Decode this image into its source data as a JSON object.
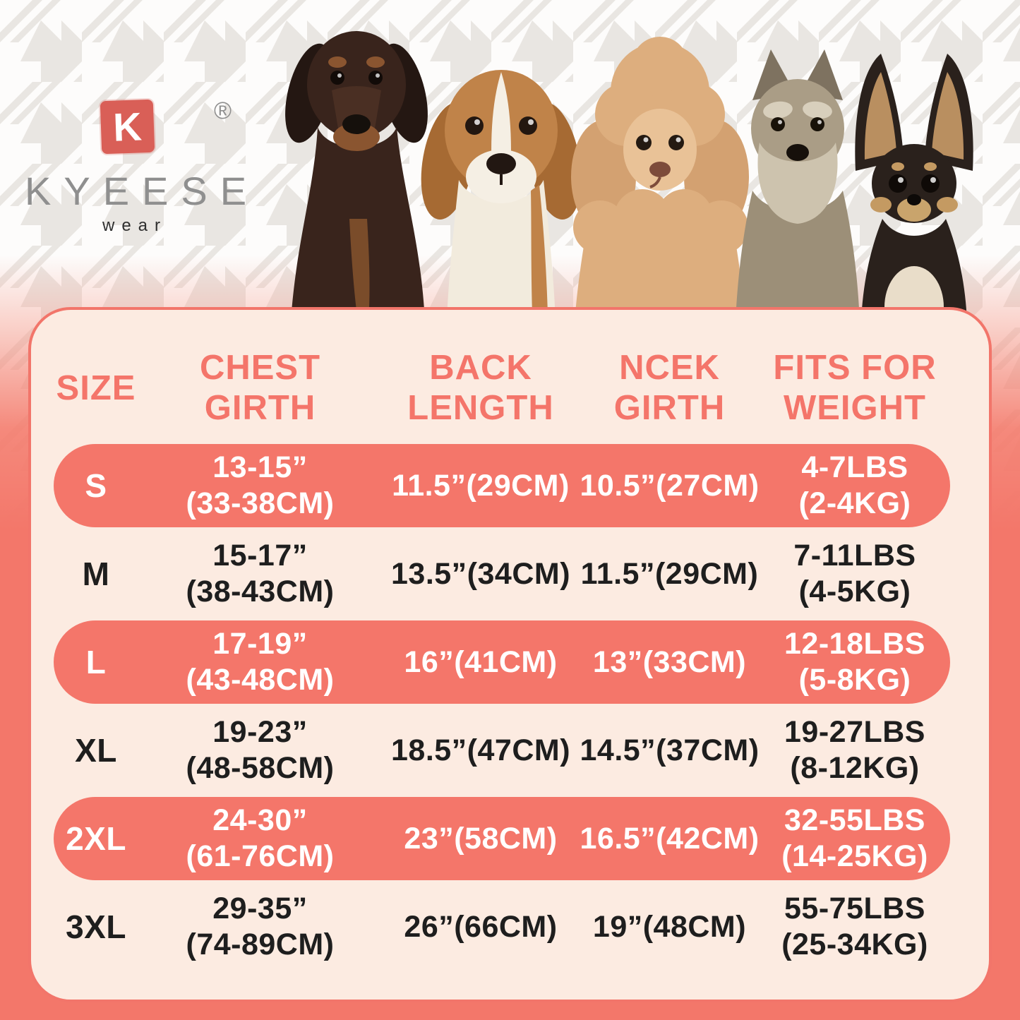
{
  "brand": {
    "mark": "K",
    "registered": "®",
    "name": "KYEESE",
    "tagline": "wear"
  },
  "dogs": [
    "doberman",
    "beagle",
    "poodle",
    "schnauzer",
    "chihuahua"
  ],
  "table": {
    "headers": [
      [
        "SIZE"
      ],
      [
        "CHEST",
        "GIRTH"
      ],
      [
        "BACK",
        "LENGTH"
      ],
      [
        "NCEK",
        "GIRTH"
      ],
      [
        "FITS FOR",
        "WEIGHT"
      ]
    ],
    "rows": [
      {
        "size": "S",
        "chest": [
          "13-15”",
          "(33-38CM)"
        ],
        "back": "11.5”(29CM)",
        "neck": "10.5”(27CM)",
        "weight": [
          "4-7LBS",
          "(2-4KG)"
        ],
        "highlight": true
      },
      {
        "size": "M",
        "chest": [
          "15-17”",
          "(38-43CM)"
        ],
        "back": "13.5”(34CM)",
        "neck": "11.5”(29CM)",
        "weight": [
          "7-11LBS",
          "(4-5KG)"
        ],
        "highlight": false
      },
      {
        "size": "L",
        "chest": [
          "17-19”",
          "(43-48CM)"
        ],
        "back": "16”(41CM)",
        "neck": "13”(33CM)",
        "weight": [
          "12-18LBS",
          "(5-8KG)"
        ],
        "highlight": true
      },
      {
        "size": "XL",
        "chest": [
          "19-23”",
          "(48-58CM)"
        ],
        "back": "18.5”(47CM)",
        "neck": "14.5”(37CM)",
        "weight": [
          "19-27LBS",
          "(8-12KG)"
        ],
        "highlight": false
      },
      {
        "size": "2XL",
        "chest": [
          "24-30”",
          "(61-76CM)"
        ],
        "back": "23”(58CM)",
        "neck": "16.5”(42CM)",
        "weight": [
          "32-55LBS",
          "(14-25KG)"
        ],
        "highlight": true
      },
      {
        "size": "3XL",
        "chest": [
          "29-35”",
          "(74-89CM)"
        ],
        "back": "26”(66CM)",
        "neck": "19”(48CM)",
        "weight": [
          "55-75LBS",
          "(25-34KG)"
        ],
        "highlight": false
      }
    ]
  },
  "colors": {
    "accent": "#f3776a",
    "header_text": "#f4756a",
    "panel_bg": "#fcebe1",
    "row_text": "#1e1e1e",
    "logo_red": "#d95f57",
    "brand_gray": "#8f8f8f",
    "houndstooth_gray": "#e9e6e2"
  }
}
